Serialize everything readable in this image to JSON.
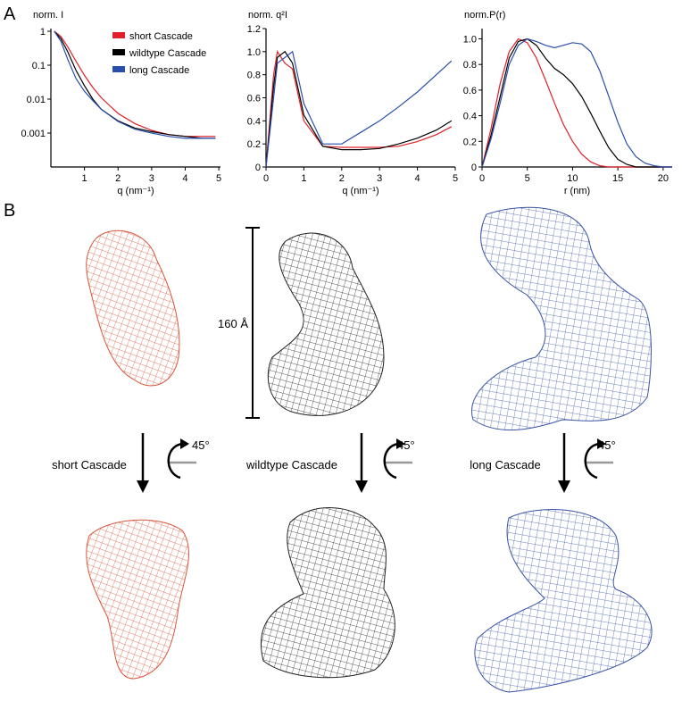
{
  "figure": {
    "panel_labels": [
      "A",
      "B"
    ],
    "scale_bar": "160 Å",
    "rotation_labels": [
      "45°",
      "45°",
      "45°"
    ],
    "structure_labels": [
      "short Cascade",
      "wildtype Cascade",
      "long Cascade"
    ]
  },
  "chart_data": [
    {
      "type": "line",
      "y_label": "norm. I",
      "x_label": "q (nm⁻¹)",
      "log_y": true,
      "legend": "upper right",
      "x": [
        0.1,
        0.3,
        0.5,
        0.75,
        1,
        1.25,
        1.5,
        2,
        2.5,
        3,
        3.5,
        4,
        4.5,
        4.9
      ],
      "xlim": [
        0,
        5.05
      ],
      "xticks": [
        1,
        2,
        3,
        4,
        5
      ],
      "ylim": [
        0.0001,
        1.2
      ],
      "yticks": [
        0.001,
        0.01,
        0.1,
        1
      ],
      "series": [
        {
          "name": "short Cascade",
          "color": "#e0202a",
          "values": [
            1,
            0.7,
            0.35,
            0.13,
            0.05,
            0.022,
            0.011,
            0.0038,
            0.0019,
            0.0012,
            0.0009,
            0.0008,
            0.0008,
            0.0008
          ]
        },
        {
          "name": "wildtype Cascade",
          "color": "#000000",
          "values": [
            1,
            0.6,
            0.25,
            0.07,
            0.025,
            0.01,
            0.005,
            0.0023,
            0.0014,
            0.0011,
            0.0009,
            0.0008,
            0.0007,
            0.0007
          ]
        },
        {
          "name": "long Cascade",
          "color": "#2a4fa8",
          "values": [
            1,
            0.5,
            0.15,
            0.04,
            0.017,
            0.009,
            0.005,
            0.0022,
            0.0013,
            0.001,
            0.0008,
            0.0007,
            0.0007,
            0.0007
          ]
        }
      ]
    },
    {
      "type": "line",
      "y_label": "norm. q²I",
      "x_label": "q (nm⁻¹)",
      "x": [
        0,
        0.2,
        0.3,
        0.5,
        0.7,
        1,
        1.5,
        2,
        2.5,
        3,
        3.5,
        4,
        4.5,
        4.9
      ],
      "xlim": [
        0,
        5
      ],
      "xticks": [
        0,
        1,
        2,
        3,
        4,
        5
      ],
      "ylim": [
        0,
        1.2
      ],
      "yticks": [
        0,
        0.2,
        0.4,
        0.6,
        0.8,
        {
          "value": 1,
          "label": "1.0"
        },
        1.2
      ],
      "series": [
        {
          "color": "#e0202a",
          "values": [
            0,
            0.8,
            1.0,
            0.9,
            0.85,
            0.4,
            0.18,
            0.17,
            0.17,
            0.17,
            0.18,
            0.22,
            0.28,
            0.35
          ]
        },
        {
          "color": "#000000",
          "values": [
            0,
            0.7,
            0.95,
            1.0,
            0.9,
            0.45,
            0.18,
            0.15,
            0.15,
            0.16,
            0.2,
            0.25,
            0.32,
            0.4
          ]
        },
        {
          "color": "#2a4fa8",
          "values": [
            0,
            0.6,
            0.9,
            0.95,
            1.0,
            0.55,
            0.2,
            0.2,
            0.3,
            0.4,
            0.52,
            0.65,
            0.8,
            0.92
          ]
        }
      ]
    },
    {
      "type": "line",
      "y_label": "norm.P(r)",
      "x_label": "r (nm)",
      "x": [
        0,
        1,
        2,
        3,
        4,
        5,
        6,
        7,
        8,
        9,
        10,
        11,
        12,
        13,
        14,
        15,
        16,
        17,
        18,
        19,
        20,
        21
      ],
      "xlim": [
        0,
        21
      ],
      "xticks": [
        0,
        5,
        10,
        15,
        20
      ],
      "ylim": [
        0,
        1.08
      ],
      "yticks": [
        0,
        0.2,
        0.4,
        0.6,
        0.8,
        {
          "value": 1,
          "label": "1.0"
        }
      ],
      "series": [
        {
          "color": "#e0202a",
          "values": [
            0,
            0.3,
            0.65,
            0.9,
            1.0,
            0.97,
            0.85,
            0.68,
            0.5,
            0.33,
            0.2,
            0.1,
            0.04,
            0.01,
            0,
            0,
            0,
            0,
            0,
            0,
            0,
            0
          ]
        },
        {
          "color": "#000000",
          "values": [
            0,
            0.25,
            0.55,
            0.85,
            0.98,
            1.0,
            0.95,
            0.85,
            0.77,
            0.72,
            0.65,
            0.55,
            0.42,
            0.28,
            0.15,
            0.06,
            0.02,
            0,
            0,
            0,
            0,
            0
          ]
        },
        {
          "color": "#2a4fa8",
          "values": [
            0,
            0.22,
            0.5,
            0.8,
            0.95,
            1.0,
            0.98,
            0.95,
            0.93,
            0.95,
            0.97,
            0.96,
            0.9,
            0.75,
            0.55,
            0.35,
            0.18,
            0.08,
            0.03,
            0.01,
            0,
            0
          ]
        }
      ]
    }
  ]
}
